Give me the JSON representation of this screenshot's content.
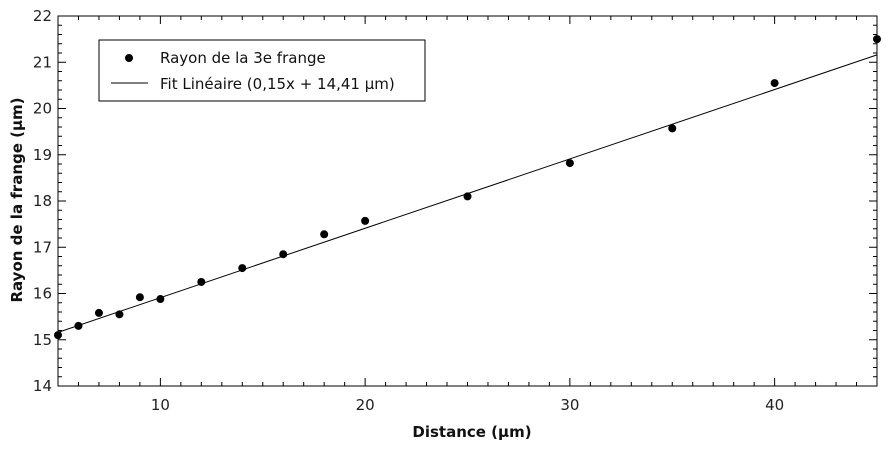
{
  "chart_data": {
    "type": "scatter",
    "xlabel": "Distance (µm)",
    "ylabel": "Rayon de la frange (µm)",
    "xlim": [
      5,
      45
    ],
    "ylim": [
      14,
      22
    ],
    "x_major_ticks": [
      10,
      20,
      30,
      40
    ],
    "x_minor_step": 1,
    "y_major_ticks": [
      14,
      15,
      16,
      17,
      18,
      19,
      20,
      21,
      22
    ],
    "y_minor_step": 0.2,
    "grid": false,
    "legend_position": "top-left",
    "series": [
      {
        "name": "Rayon de la 3e frange",
        "kind": "scatter",
        "color": "#000000",
        "x": [
          5,
          6,
          7,
          8,
          9,
          10,
          12,
          14,
          16,
          18,
          20,
          25,
          30,
          35,
          40,
          45
        ],
        "y": [
          15.1,
          15.3,
          15.58,
          15.55,
          15.92,
          15.88,
          16.25,
          16.55,
          16.85,
          17.28,
          17.57,
          18.1,
          18.82,
          19.57,
          20.55,
          21.5
        ]
      },
      {
        "name": "Fit Linéaire (0,15x + 14,41 µm)",
        "kind": "line",
        "color": "#000000",
        "slope": 0.15,
        "intercept": 14.41
      }
    ]
  }
}
